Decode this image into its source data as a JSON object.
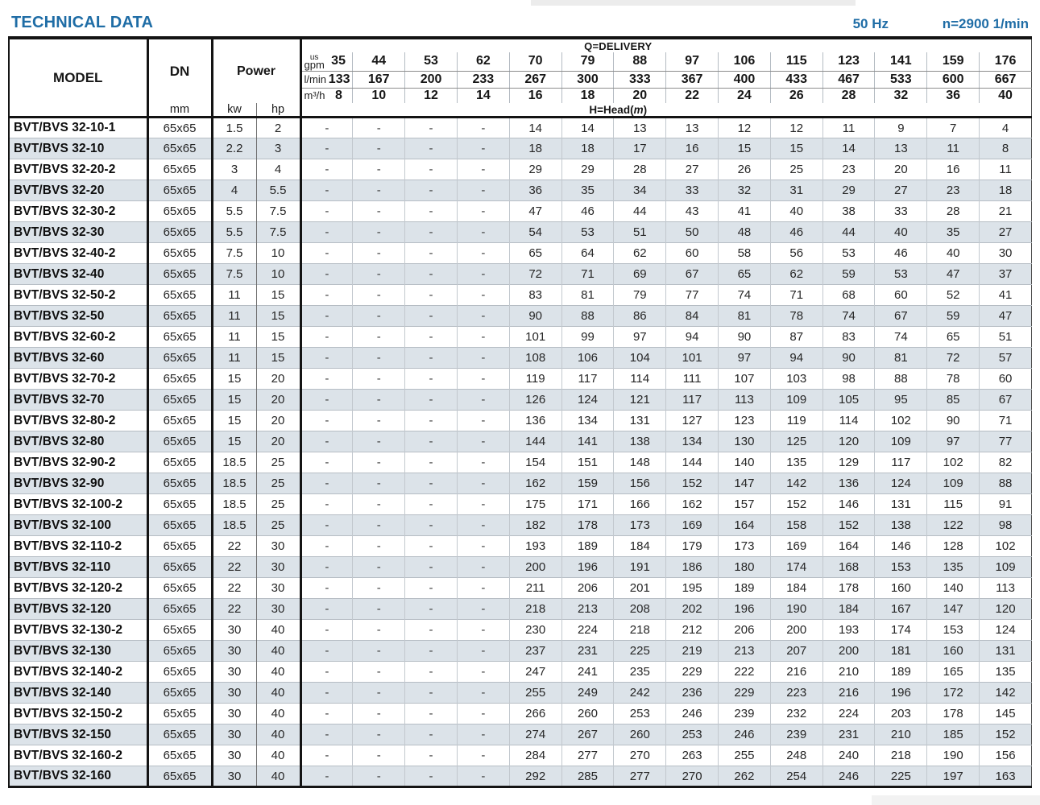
{
  "page": {
    "title": "TECHNICAL DATA",
    "frequency": "50 Hz",
    "speed": "n=2900 1/min"
  },
  "table": {
    "header": {
      "model_label": "MODEL",
      "dn_label": "DN",
      "dn_unit": "mm",
      "power_label": "Power",
      "power_unit_kw": "kw",
      "power_unit_hp": "hp",
      "delivery_label": "Q=DELIVERY",
      "head_prefix": "H=Head(",
      "head_m": "m",
      "head_suffix": ")",
      "unit_gpm_top": "us",
      "unit_gpm_bottom": "gpm",
      "unit_lmin": "l/min",
      "unit_m3h": "m³/h",
      "gpm": [
        35,
        44,
        53,
        62,
        70,
        79,
        88,
        97,
        106,
        115,
        123,
        141,
        159,
        176
      ],
      "lmin": [
        133,
        167,
        200,
        233,
        267,
        300,
        333,
        367,
        400,
        433,
        467,
        533,
        600,
        667
      ],
      "m3h": [
        8,
        10,
        12,
        14,
        16,
        18,
        20,
        22,
        24,
        26,
        28,
        32,
        36,
        40
      ]
    },
    "rows": [
      {
        "model": "BVT/BVS 32-10-1",
        "dn": "65x65",
        "kw": 1.5,
        "hp": 2,
        "head": [
          "-",
          "-",
          "-",
          "-",
          14,
          14,
          13,
          13,
          12,
          12,
          11,
          9,
          7,
          4
        ]
      },
      {
        "model": "BVT/BVS 32-10",
        "dn": "65x65",
        "kw": 2.2,
        "hp": 3,
        "head": [
          "-",
          "-",
          "-",
          "-",
          18,
          18,
          17,
          16,
          15,
          15,
          14,
          13,
          11,
          8
        ]
      },
      {
        "model": "BVT/BVS 32-20-2",
        "dn": "65x65",
        "kw": 3,
        "hp": 4,
        "head": [
          "-",
          "-",
          "-",
          "-",
          29,
          29,
          28,
          27,
          26,
          25,
          23,
          20,
          16,
          11
        ]
      },
      {
        "model": "BVT/BVS 32-20",
        "dn": "65x65",
        "kw": 4,
        "hp": 5.5,
        "head": [
          "-",
          "-",
          "-",
          "-",
          36,
          35,
          34,
          33,
          32,
          31,
          29,
          27,
          23,
          18
        ]
      },
      {
        "model": "BVT/BVS 32-30-2",
        "dn": "65x65",
        "kw": 5.5,
        "hp": 7.5,
        "head": [
          "-",
          "-",
          "-",
          "-",
          47,
          46,
          44,
          43,
          41,
          40,
          38,
          33,
          28,
          21
        ]
      },
      {
        "model": "BVT/BVS 32-30",
        "dn": "65x65",
        "kw": 5.5,
        "hp": 7.5,
        "head": [
          "-",
          "-",
          "-",
          "-",
          54,
          53,
          51,
          50,
          48,
          46,
          44,
          40,
          35,
          27
        ]
      },
      {
        "model": "BVT/BVS 32-40-2",
        "dn": "65x65",
        "kw": 7.5,
        "hp": 10,
        "head": [
          "-",
          "-",
          "-",
          "-",
          65,
          64,
          62,
          60,
          58,
          56,
          53,
          46,
          40,
          30
        ]
      },
      {
        "model": "BVT/BVS 32-40",
        "dn": "65x65",
        "kw": 7.5,
        "hp": 10,
        "head": [
          "-",
          "-",
          "-",
          "-",
          72,
          71,
          69,
          67,
          65,
          62,
          59,
          53,
          47,
          37
        ]
      },
      {
        "model": "BVT/BVS 32-50-2",
        "dn": "65x65",
        "kw": 11,
        "hp": 15,
        "head": [
          "-",
          "-",
          "-",
          "-",
          83,
          81,
          79,
          77,
          74,
          71,
          68,
          60,
          52,
          41
        ]
      },
      {
        "model": "BVT/BVS 32-50",
        "dn": "65x65",
        "kw": 11,
        "hp": 15,
        "head": [
          "-",
          "-",
          "-",
          "-",
          90,
          88,
          86,
          84,
          81,
          78,
          74,
          67,
          59,
          47
        ]
      },
      {
        "model": "BVT/BVS 32-60-2",
        "dn": "65x65",
        "kw": 11,
        "hp": 15,
        "head": [
          "-",
          "-",
          "-",
          "-",
          101,
          99,
          97,
          94,
          90,
          87,
          83,
          74,
          65,
          51
        ]
      },
      {
        "model": "BVT/BVS 32-60",
        "dn": "65x65",
        "kw": 11,
        "hp": 15,
        "head": [
          "-",
          "-",
          "-",
          "-",
          108,
          106,
          104,
          101,
          97,
          94,
          90,
          81,
          72,
          57
        ]
      },
      {
        "model": "BVT/BVS 32-70-2",
        "dn": "65x65",
        "kw": 15,
        "hp": 20,
        "head": [
          "-",
          "-",
          "-",
          "-",
          119,
          117,
          114,
          111,
          107,
          103,
          98,
          88,
          78,
          60
        ]
      },
      {
        "model": "BVT/BVS 32-70",
        "dn": "65x65",
        "kw": 15,
        "hp": 20,
        "head": [
          "-",
          "-",
          "-",
          "-",
          126,
          124,
          121,
          117,
          113,
          109,
          105,
          95,
          85,
          67
        ]
      },
      {
        "model": "BVT/BVS 32-80-2",
        "dn": "65x65",
        "kw": 15,
        "hp": 20,
        "head": [
          "-",
          "-",
          "-",
          "-",
          136,
          134,
          131,
          127,
          123,
          119,
          114,
          102,
          90,
          71
        ]
      },
      {
        "model": "BVT/BVS 32-80",
        "dn": "65x65",
        "kw": 15,
        "hp": 20,
        "head": [
          "-",
          "-",
          "-",
          "-",
          144,
          141,
          138,
          134,
          130,
          125,
          120,
          109,
          97,
          77
        ]
      },
      {
        "model": "BVT/BVS 32-90-2",
        "dn": "65x65",
        "kw": 18.5,
        "hp": 25,
        "head": [
          "-",
          "-",
          "-",
          "-",
          154,
          151,
          148,
          144,
          140,
          135,
          129,
          117,
          102,
          82
        ]
      },
      {
        "model": "BVT/BVS 32-90",
        "dn": "65x65",
        "kw": 18.5,
        "hp": 25,
        "head": [
          "-",
          "-",
          "-",
          "-",
          162,
          159,
          156,
          152,
          147,
          142,
          136,
          124,
          109,
          88
        ]
      },
      {
        "model": "BVT/BVS 32-100-2",
        "dn": "65x65",
        "kw": 18.5,
        "hp": 25,
        "head": [
          "-",
          "-",
          "-",
          "-",
          175,
          171,
          166,
          162,
          157,
          152,
          146,
          131,
          115,
          91
        ]
      },
      {
        "model": "BVT/BVS 32-100",
        "dn": "65x65",
        "kw": 18.5,
        "hp": 25,
        "head": [
          "-",
          "-",
          "-",
          "-",
          182,
          178,
          173,
          169,
          164,
          158,
          152,
          138,
          122,
          98
        ]
      },
      {
        "model": "BVT/BVS 32-110-2",
        "dn": "65x65",
        "kw": 22,
        "hp": 30,
        "head": [
          "-",
          "-",
          "-",
          "-",
          193,
          189,
          184,
          179,
          173,
          169,
          164,
          146,
          128,
          102
        ]
      },
      {
        "model": "BVT/BVS 32-110",
        "dn": "65x65",
        "kw": 22,
        "hp": 30,
        "head": [
          "-",
          "-",
          "-",
          "-",
          200,
          196,
          191,
          186,
          180,
          174,
          168,
          153,
          135,
          109
        ]
      },
      {
        "model": "BVT/BVS 32-120-2",
        "dn": "65x65",
        "kw": 22,
        "hp": 30,
        "head": [
          "-",
          "-",
          "-",
          "-",
          211,
          206,
          201,
          195,
          189,
          184,
          178,
          160,
          140,
          113
        ]
      },
      {
        "model": "BVT/BVS 32-120",
        "dn": "65x65",
        "kw": 22,
        "hp": 30,
        "head": [
          "-",
          "-",
          "-",
          "-",
          218,
          213,
          208,
          202,
          196,
          190,
          184,
          167,
          147,
          120
        ]
      },
      {
        "model": "BVT/BVS 32-130-2",
        "dn": "65x65",
        "kw": 30,
        "hp": 40,
        "head": [
          "-",
          "-",
          "-",
          "-",
          230,
          224,
          218,
          212,
          206,
          200,
          193,
          174,
          153,
          124
        ]
      },
      {
        "model": "BVT/BVS 32-130",
        "dn": "65x65",
        "kw": 30,
        "hp": 40,
        "head": [
          "-",
          "-",
          "-",
          "-",
          237,
          231,
          225,
          219,
          213,
          207,
          200,
          181,
          160,
          131
        ]
      },
      {
        "model": "BVT/BVS 32-140-2",
        "dn": "65x65",
        "kw": 30,
        "hp": 40,
        "head": [
          "-",
          "-",
          "-",
          "-",
          247,
          241,
          235,
          229,
          222,
          216,
          210,
          189,
          165,
          135
        ]
      },
      {
        "model": "BVT/BVS 32-140",
        "dn": "65x65",
        "kw": 30,
        "hp": 40,
        "head": [
          "-",
          "-",
          "-",
          "-",
          255,
          249,
          242,
          236,
          229,
          223,
          216,
          196,
          172,
          142
        ]
      },
      {
        "model": "BVT/BVS 32-150-2",
        "dn": "65x65",
        "kw": 30,
        "hp": 40,
        "head": [
          "-",
          "-",
          "-",
          "-",
          266,
          260,
          253,
          246,
          239,
          232,
          224,
          203,
          178,
          145
        ]
      },
      {
        "model": "BVT/BVS 32-150",
        "dn": "65x65",
        "kw": 30,
        "hp": 40,
        "head": [
          "-",
          "-",
          "-",
          "-",
          274,
          267,
          260,
          253,
          246,
          239,
          231,
          210,
          185,
          152
        ]
      },
      {
        "model": "BVT/BVS 32-160-2",
        "dn": "65x65",
        "kw": 30,
        "hp": 40,
        "head": [
          "-",
          "-",
          "-",
          "-",
          284,
          277,
          270,
          263,
          255,
          248,
          240,
          218,
          190,
          156
        ]
      },
      {
        "model": "BVT/BVS 32-160",
        "dn": "65x65",
        "kw": 30,
        "hp": 40,
        "head": [
          "-",
          "-",
          "-",
          "-",
          292,
          285,
          277,
          270,
          262,
          254,
          246,
          225,
          197,
          163
        ]
      }
    ]
  }
}
